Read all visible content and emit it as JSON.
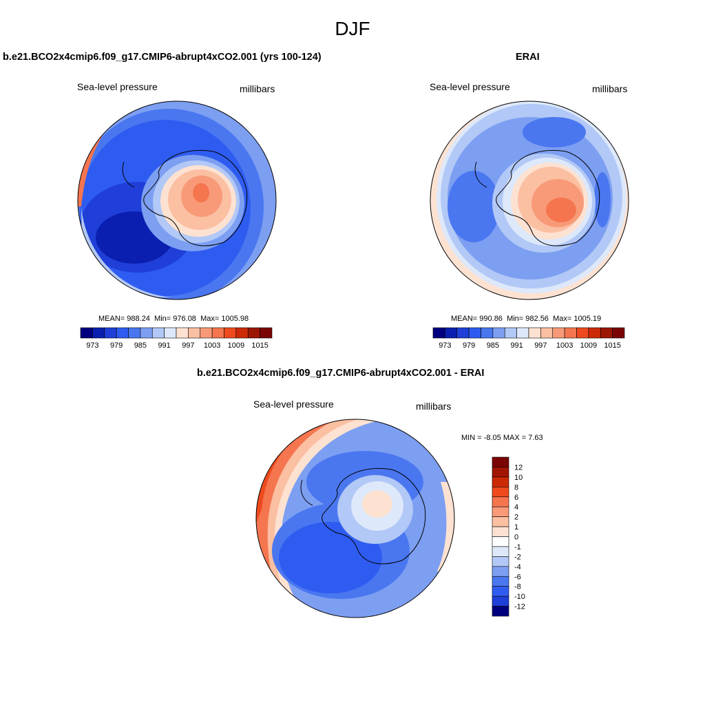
{
  "page_title": "DJF",
  "chart_data": [
    {
      "type": "heatmap",
      "projection": "south-polar-stereographic",
      "title": "b.e21.BCO2x4cmip6.f09_g17.CMIP6-abrupt4xCO2.001 (yrs 100-124)",
      "left_label": "Sea-level pressure",
      "right_label": "millibars",
      "stats": {
        "mean_label": "MEAN=",
        "mean": "988.24",
        "min_label": "Min=",
        "min": "976.08",
        "max_label": "Max=",
        "max": "1005.98"
      },
      "colorbar": {
        "orientation": "horizontal",
        "levels": [
          973,
          976,
          979,
          982,
          985,
          988,
          991,
          994,
          997,
          1000,
          1003,
          1006,
          1009,
          1012,
          1015
        ],
        "tick_labels": [
          "973",
          "979",
          "985",
          "991",
          "997",
          "1003",
          "1009",
          "1015"
        ],
        "colors": [
          "#00007f",
          "#0a1fb0",
          "#1f3fd8",
          "#2f5cf0",
          "#4a77f0",
          "#7d9ff2",
          "#b2c8f6",
          "#dde8fa",
          "#fde2d2",
          "#fbbfa2",
          "#f89a78",
          "#f5754f",
          "#ee4a1e",
          "#cc2a06",
          "#9c1604",
          "#7a0403"
        ]
      }
    },
    {
      "type": "heatmap",
      "projection": "south-polar-stereographic",
      "title": "ERAI",
      "left_label": "Sea-level pressure",
      "right_label": "millibars",
      "stats": {
        "mean_label": "MEAN=",
        "mean": "990.86",
        "min_label": "Min=",
        "min": "982.56",
        "max_label": "Max=",
        "max": "1005.19"
      },
      "colorbar": {
        "orientation": "horizontal",
        "levels": [
          973,
          976,
          979,
          982,
          985,
          988,
          991,
          994,
          997,
          1000,
          1003,
          1006,
          1009,
          1012,
          1015
        ],
        "tick_labels": [
          "973",
          "979",
          "985",
          "991",
          "997",
          "1003",
          "1009",
          "1015"
        ],
        "colors": [
          "#00007f",
          "#0a1fb0",
          "#1f3fd8",
          "#2f5cf0",
          "#4a77f0",
          "#7d9ff2",
          "#b2c8f6",
          "#dde8fa",
          "#fde2d2",
          "#fbbfa2",
          "#f89a78",
          "#f5754f",
          "#ee4a1e",
          "#cc2a06",
          "#9c1604",
          "#7a0403"
        ]
      }
    },
    {
      "type": "heatmap",
      "projection": "south-polar-stereographic",
      "title": "b.e21.BCO2x4cmip6.f09_g17.CMIP6-abrupt4xCO2.001 - ERAI",
      "left_label": "Sea-level pressure",
      "right_label": "millibars",
      "stats_text": "MIN =  -8.05 MAX =   7.63",
      "colorbar": {
        "orientation": "vertical",
        "levels": [
          12,
          10,
          8,
          6,
          4,
          2,
          1,
          0,
          -1,
          -2,
          -4,
          -6,
          -8,
          -10,
          -12
        ],
        "tick_labels": [
          "12",
          "10",
          "8",
          "6",
          "4",
          "2",
          "1",
          "0",
          "-1",
          "-2",
          "-4",
          "-6",
          "-8",
          "-10",
          "-12"
        ],
        "colors": [
          "#7a0403",
          "#a31503",
          "#cc2a06",
          "#ee4a1e",
          "#f5754f",
          "#f89a78",
          "#fbbfa2",
          "#fde2d2",
          "#ffffff",
          "#dde8fa",
          "#b2c8f6",
          "#7d9ff2",
          "#4a77f0",
          "#2f5cf0",
          "#1f3fd8",
          "#00007f"
        ]
      }
    }
  ]
}
